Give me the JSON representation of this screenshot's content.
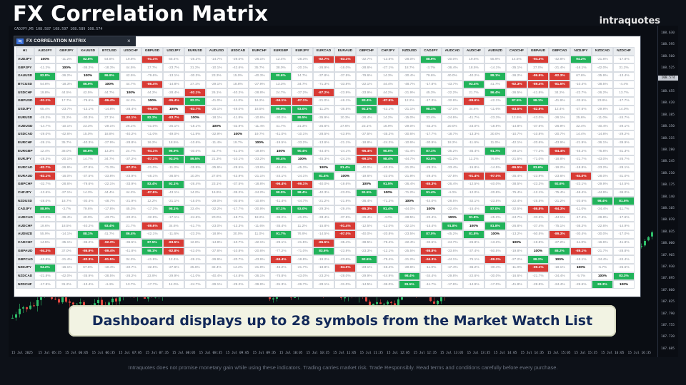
{
  "promo": {
    "title": "FX Correlation Matrix",
    "brand": "intraquotes",
    "caption": "Dashboard displays up to 28 symbols from the Market Watch List",
    "disclaimer": "Intraquotes does not promise monetary gain while using these indicators. Trading carries market risk. Trade Responsibly. Read terms and conditions carefully before every purchase."
  },
  "chart": {
    "symbol_info": "CADJPY,M5  108.587 108.597 108.589 108.574",
    "current_price": "108.574",
    "price_ticks": [
      "108.630",
      "108.595",
      "108.560",
      "108.525",
      "108.490",
      "108.455",
      "108.420",
      "108.385",
      "108.350",
      "108.315",
      "108.280",
      "108.245",
      "108.210",
      "108.175",
      "108.140",
      "108.105",
      "108.070",
      "108.035",
      "108.000",
      "107.965",
      "107.930",
      "107.895",
      "107.860",
      "107.825",
      "107.790",
      "107.755",
      "107.720",
      "107.685"
    ],
    "time_ticks": [
      "15 Jul 2025",
      "15 Jul 05:35",
      "15 Jul 06:05",
      "15 Jul 06:35",
      "15 Jul 07:05",
      "15 Jul 07:35",
      "15 Jul 08:05",
      "15 Jul 08:35",
      "15 Jul 09:05",
      "15 Jul 09:35",
      "15 Jul 10:05",
      "15 Jul 10:35",
      "15 Jul 11:05",
      "15 Jul 11:35",
      "15 Jul 12:05",
      "15 Jul 12:35",
      "15 Jul 13:05",
      "15 Jul 13:35",
      "15 Jul 14:05",
      "15 Jul 14:35",
      "15 Jul 15:05",
      "15 Jul 15:35",
      "15 Jul 16:05",
      "15 Jul 16:35"
    ]
  },
  "panel": {
    "logo": "iq",
    "title": "FX CORRELATION MATRIX",
    "close": "×",
    "corner": "H1",
    "symbols": [
      "AUDJPY",
      "GBPJPY",
      "XAUUSD",
      "BTCUSD",
      "USDCHF",
      "GBPUSD",
      "USDJPY",
      "EURUSD",
      "AUDUSD",
      "USDCAD",
      "EURCHF",
      "EURGBP",
      "EURJPY",
      "EURCAD",
      "EURAUD",
      "GBPCHF",
      "CHFJPY",
      "NZDUSD",
      "CADJPY",
      "AUDCAD",
      "AUDCHF",
      "AUDNZD",
      "CADCHF",
      "GBPAUD",
      "GBPCAD",
      "NZDJPY",
      "NZDCAD",
      "NZDCHF"
    ],
    "matrix": [
      [
        "100%",
        "-11.2%",
        "82.8%",
        "54.8%",
        "19.8%",
        "-91.1%",
        "65.4%",
        "-26.2%",
        "-14.7%",
        "-29.0%",
        "-26.1%",
        "12.4%",
        "-28.3%",
        "-82.7%",
        "-83.1%",
        "-32.7%",
        "-13.6%",
        "-28.0%",
        "88.9%",
        "-20.0%",
        "19.6%",
        "55.9%",
        "14.5%",
        "-94.3%",
        "-42.8%",
        "94.2%",
        "-21.8%",
        "-17.8%"
      ],
      [
        "-11.2%",
        "100%",
        "-36.2%",
        "-18.3%",
        "44.5%",
        "17.7%",
        "-23.7%",
        "31.2%",
        "-10.1%",
        "-42.6%",
        "35.7%",
        "38.0%",
        "-20.1%",
        "-26.9%",
        "-16.0%",
        "-28.6%",
        "-27.1%",
        "18.7%",
        "-3.7%",
        "-36.4%",
        "18.5%",
        "-14.1%",
        "-35.1%",
        "37.0%",
        "-21.4%",
        "-16.1%",
        "-42.0%",
        "31.2%"
      ],
      [
        "82.8%",
        "-36.2%",
        "100%",
        "86.9%",
        "42.5%",
        "-79.6%",
        "-13.1%",
        "-30.3%",
        "23.3%",
        "15.0%",
        "-40.3%",
        "80.6%",
        "14.7%",
        "-37.8%",
        "-37.5%",
        "-79.6%",
        "14.3%",
        "-30.4%",
        "79.6%",
        "40.0%",
        "-40.2%",
        "88.1%",
        "-36.2%",
        "-86.9%",
        "-82.3%",
        "67.6%",
        "-35.9%",
        "-13.4%"
      ],
      [
        "54.8%",
        "-18.3%",
        "86.9%",
        "100%",
        "44.7%",
        "-86.4%",
        "-14.8%",
        "27.1%",
        "-29.1%",
        "18.8%",
        "-27.9%",
        "13.3%",
        "34.7%",
        "-71.3%",
        "-33.8%",
        "-22.1%",
        "44.4%",
        "-48.7%",
        "-17.8%",
        "-43.7%",
        "93.4%",
        "41.7%",
        "-92.3%",
        "-89.4%",
        "-81.5%",
        "-10.4%",
        "-38.5%",
        "-4.4%"
      ],
      [
        "19.8%",
        "44.5%",
        "42.5%",
        "44.7%",
        "100%",
        "44.2%",
        "-28.4%",
        "-92.1%",
        "26.1%",
        "-40.2%",
        "-28.8%",
        "24.7%",
        "-37.2%",
        "-87.2%",
        "-23.9%",
        "-33.9%",
        "44.2%",
        "-21.9%",
        "45.3%",
        "-22.2%",
        "21.7%",
        "86.4%",
        "-36.5%",
        "-41.8%",
        "34.2%",
        "-22.7%",
        "-26.2%",
        "13.7%"
      ],
      [
        "-91.1%",
        "17.7%",
        "-79.6%",
        "-86.4%",
        "44.2%",
        "100%",
        "-95.4%",
        "82.2%",
        "-41.0%",
        "-11.0%",
        "16.2%",
        "-94.1%",
        "-87.1%",
        "-21.0%",
        "-46.1%",
        "83.4%",
        "-87.5%",
        "12.2%",
        "-17.3%",
        "-32.9%",
        "-89.6%",
        "-42.1%",
        "87.5%",
        "98.1%",
        "-41.9%",
        "-32.5%",
        "23.9%",
        "-17.7%"
      ],
      [
        "65.4%",
        "-23.7%",
        "-13.1%",
        "-14.8%",
        "-28.4%",
        "-95.4%",
        "100%",
        "-83.7%",
        "-25.1%",
        "-49.0%",
        "18.5%",
        "96.9%",
        "93.0%",
        "-11.2%",
        "-36.5%",
        "92.1%",
        "-43.1%",
        "-21.1%",
        "98.1%",
        "-17.1%",
        "34.6%",
        "-11.6%",
        "-83.5%",
        "-82.8%",
        "12.4%",
        "-27.6%",
        "-29.9%",
        "14.0%"
      ],
      [
        "-26.2%",
        "31.2%",
        "-30.3%",
        "27.1%",
        "-92.1%",
        "82.2%",
        "-83.7%",
        "100%",
        "-18.1%",
        "-11.8%",
        "-10.6%",
        "-30.0%",
        "89.5%",
        "-35.9%",
        "10.3%",
        "-26.4%",
        "14.2%",
        "-15.0%",
        "33.4%",
        "-24.6%",
        "-41.7%",
        "-23.3%",
        "12.6%",
        "-43.0%",
        "-26.1%",
        "25.6%",
        "-11.0%",
        "-24.7%"
      ],
      [
        "-14.7%",
        "-10.1%",
        "23.3%",
        "-29.1%",
        "26.1%",
        "-41.0%",
        "-25.1%",
        "-18.1%",
        "100%",
        "-32.9%",
        "-11.4%",
        "41.7%",
        "21.3%",
        "-25.6%",
        "27.6%",
        "23.1%",
        "16.9%",
        "-29.0%",
        "-32.2%",
        "20.0%",
        "-23.0%",
        "-18.9%",
        "-14.8%",
        "-37.6%",
        "-26.9%",
        "32.4%",
        "-40.4%",
        "-29.1%"
      ],
      [
        "-29.0%",
        "-42.6%",
        "15.0%",
        "18.8%",
        "-40.2%",
        "-11.0%",
        "-49.0%",
        "-11.8%",
        "-32.9%",
        "100%",
        "19.7%",
        "-41.0%",
        "-10.1%",
        "-28.5%",
        "-43.9%",
        "-37.5%",
        "-35.2%",
        "-30.6%",
        "-17.7%",
        "-18.7%",
        "-13.3%",
        "30.0%",
        "-10.7%",
        "-10.8%",
        "-20.7%",
        "14.4%",
        "-14.8%",
        "-29.2%"
      ],
      [
        "-26.1%",
        "35.7%",
        "-40.3%",
        "-27.9%",
        "-28.8%",
        "16.2%",
        "18.5%",
        "-10.6%",
        "-11.4%",
        "19.7%",
        "100%",
        "-19.5%",
        "-33.2%",
        "-13.6%",
        "-21.1%",
        "-18.8%",
        "-24.2%",
        "-10.6%",
        "-30.9%",
        "18.2%",
        "-11.6%",
        "11.0%",
        "-42.1%",
        "-20.6%",
        "-43.9%",
        "-21.9%",
        "-36.1%",
        "-39.9%"
      ],
      [
        "12.4%",
        "38.0%",
        "80.6%",
        "13.3%",
        "24.7%",
        "-94.1%",
        "96.9%",
        "-30.0%",
        "41.7%",
        "-41.0%",
        "-19.5%",
        "100%",
        "90.4%",
        "-44.4%",
        "-24.1%",
        "-96.4%",
        "90.0%",
        "-41.4%",
        "87.1%",
        "-35.2%",
        "-35.4%",
        "91.7%",
        "-29.1%",
        "-77.2%",
        "-84.4%",
        "-46.2%",
        "-75.8%",
        "-31.3%"
      ],
      [
        "-28.3%",
        "-20.1%",
        "14.7%",
        "34.7%",
        "-37.2%",
        "-87.1%",
        "93.0%",
        "89.5%",
        "21.3%",
        "-10.1%",
        "-33.2%",
        "90.4%",
        "100%",
        "-45.3%",
        "-24.1%",
        "-99.1%",
        "98.4%",
        "-44.7%",
        "93.0%",
        "-41.2%",
        "11.2%",
        "76.9%",
        "-21.5%",
        "-71.0%",
        "-18.8%",
        "-21.7%",
        "-43.0%",
        "-26.7%"
      ],
      [
        "-82.7%",
        "-26.9%",
        "-37.8%",
        "-71.3%",
        "-87.2%",
        "-21.0%",
        "-11.2%",
        "-35.9%",
        "-25.6%",
        "-28.5%",
        "-13.6%",
        "-44.4%",
        "-45.3%",
        "100%",
        "81.4%",
        "-40.0%",
        "-40.3%",
        "-21.2%",
        "-29.3%",
        "-33.4%",
        "-15.8%",
        "-14.5%",
        "-86.5%",
        "83.6%",
        "-19.2%",
        "-18.8%",
        "-23.2%",
        "-28.1%"
      ],
      [
        "-83.1%",
        "-16.0%",
        "-37.5%",
        "-33.8%",
        "-23.9%",
        "-46.1%",
        "-36.5%",
        "10.3%",
        "27.6%",
        "-43.9%",
        "-21.1%",
        "-24.1%",
        "-24.1%",
        "81.4%",
        "100%",
        "-19.6%",
        "-23.0%",
        "-21.9%",
        "-29.4%",
        "-37.5%",
        "-91.4%",
        "-97.0%",
        "-35.4%",
        "-23.9%",
        "-23.6%",
        "-84.0%",
        "-28.0%",
        "-31.0%"
      ],
      [
        "-32.7%",
        "-28.6%",
        "-79.6%",
        "-22.1%",
        "-33.9%",
        "83.4%",
        "92.1%",
        "-26.4%",
        "23.1%",
        "-37.5%",
        "-18.8%",
        "-96.4%",
        "-99.1%",
        "-40.0%",
        "-19.6%",
        "100%",
        "91.5%",
        "-36.4%",
        "-85.3%",
        "-26.4%",
        "-12.5%",
        "-40.0%",
        "-38.5%",
        "-23.3%",
        "92.6%",
        "-23.1%",
        "-29.9%",
        "-14.5%"
      ],
      [
        "-13.6%",
        "-27.1%",
        "14.3%",
        "44.4%",
        "44.2%",
        "-87.5%",
        "-43.1%",
        "14.2%",
        "16.9%",
        "-35.2%",
        "-24.2%",
        "90.0%",
        "98.4%",
        "-40.3%",
        "-23.0%",
        "91.5%",
        "100%",
        "-71.2%",
        "91.4%",
        "-4.0%",
        "-12.0%",
        "-20.8%",
        "-75.4%",
        "-12.1%",
        "-75.4%",
        "-46.4%",
        "-44.9%",
        "-36.0%"
      ],
      [
        "-28.0%",
        "18.7%",
        "-30.4%",
        "-48.7%",
        "-21.9%",
        "12.2%",
        "-21.1%",
        "-15.0%",
        "-29.0%",
        "-30.6%",
        "-10.6%",
        "-41.4%",
        "-44.7%",
        "-21.2%",
        "-21.9%",
        "-36.4%",
        "-71.2%",
        "100%",
        "-44.0%",
        "-28.5%",
        "-32.1%",
        "-23.5%",
        "-22.4%",
        "-25.5%",
        "-21.2%",
        "-20.6%",
        "98.4%",
        "81.5%"
      ],
      [
        "88.9%",
        "-3.7%",
        "79.6%",
        "-17.8%",
        "45.3%",
        "-17.3%",
        "98.1%",
        "33.4%",
        "-32.2%",
        "-17.7%",
        "-30.9%",
        "87.1%",
        "93.0%",
        "-29.3%",
        "-29.4%",
        "-85.3%",
        "91.4%",
        "-44.0%",
        "100%",
        "-22.4%",
        "-15.4%",
        "87.0%",
        "-32.5%",
        "-86.8%",
        "-94.3%",
        "-11.0%",
        "-34.4%",
        "-11.7%"
      ],
      [
        "-20.0%",
        "-36.4%",
        "40.0%",
        "-43.7%",
        "-22.2%",
        "-32.9%",
        "-17.1%",
        "-24.6%",
        "20.0%",
        "-18.7%",
        "18.2%",
        "-35.2%",
        "-41.2%",
        "-33.4%",
        "-37.5%",
        "-26.4%",
        "-4.0%",
        "-28.5%",
        "-22.4%",
        "100%",
        "91.8%",
        "-45.2%",
        "-24.7%",
        "-33.6%",
        "-44.1%",
        "-17.4%",
        "-29.8%",
        "-17.6%"
      ],
      [
        "19.6%",
        "18.5%",
        "-40.2%",
        "93.4%",
        "21.7%",
        "-89.6%",
        "34.6%",
        "-41.7%",
        "-23.0%",
        "-13.3%",
        "-11.6%",
        "-35.4%",
        "11.2%",
        "-15.8%",
        "-91.4%",
        "-12.5%",
        "-12.0%",
        "-32.1%",
        "-15.4%",
        "91.8%",
        "100%",
        "81.8%",
        "-26.8%",
        "-37.4%",
        "-75.1%",
        "-36.2%",
        "-22.6%",
        "-14.9%"
      ],
      [
        "55.9%",
        "-14.1%",
        "88.1%",
        "41.7%",
        "86.4%",
        "-42.1%",
        "-11.6%",
        "-23.3%",
        "-18.9%",
        "30.0%",
        "11.0%",
        "91.7%",
        "76.9%",
        "-14.5%",
        "-97.0%",
        "-40.0%",
        "-20.8%",
        "-23.5%",
        "87.0%",
        "-45.2%",
        "81.8%",
        "100%",
        "-13.2%",
        "-50.5%",
        "-89.3%",
        "-30.4%",
        "-30.0%",
        "-17.0%"
      ],
      [
        "14.5%",
        "-35.1%",
        "-36.2%",
        "-92.3%",
        "-36.5%",
        "87.5%",
        "-83.5%",
        "12.6%",
        "-14.8%",
        "-10.7%",
        "-42.1%",
        "-29.1%",
        "-21.5%",
        "-86.5%",
        "-35.4%",
        "-38.5%",
        "-75.4%",
        "-22.4%",
        "-32.5%",
        "-24.7%",
        "-26.8%",
        "-13.2%",
        "100%",
        "-19.8%",
        "-27.2%",
        "-11.0%",
        "-16.6%",
        "-41.8%"
      ],
      [
        "-94.3%",
        "37.0%",
        "-86.9%",
        "-89.4%",
        "-41.8%",
        "98.1%",
        "-82.8%",
        "-43.0%",
        "-37.6%",
        "-10.8%",
        "-20.6%",
        "-77.2%",
        "-71.0%",
        "83.6%",
        "-23.9%",
        "-23.3%",
        "-12.1%",
        "-25.5%",
        "-86.8%",
        "-33.6%",
        "-37.4%",
        "-50.5%",
        "-19.8%",
        "100%",
        "88.2%",
        "-89.1%",
        "-21.7%",
        "-28.8%"
      ],
      [
        "-42.8%",
        "-21.4%",
        "-82.3%",
        "-81.5%",
        "34.2%",
        "-41.9%",
        "12.4%",
        "-26.1%",
        "-26.9%",
        "-20.7%",
        "-43.9%",
        "-84.4%",
        "-18.8%",
        "-19.2%",
        "-23.6%",
        "92.6%",
        "-75.4%",
        "-21.2%",
        "-94.3%",
        "-44.1%",
        "-75.1%",
        "-89.3%",
        "-27.2%",
        "88.2%",
        "100%",
        "-18.1%",
        "-34.4%",
        "-24.4%"
      ],
      [
        "94.2%",
        "-16.1%",
        "67.6%",
        "-10.4%",
        "-22.7%",
        "-32.5%",
        "-27.6%",
        "25.6%",
        "32.4%",
        "14.4%",
        "-21.9%",
        "-46.2%",
        "-21.7%",
        "-18.8%",
        "-84.0%",
        "-23.1%",
        "-46.4%",
        "-20.6%",
        "-11.0%",
        "-17.4%",
        "-36.2%",
        "-30.4%",
        "-11.0%",
        "-89.1%",
        "-18.1%",
        "100%",
        "-5.7%",
        "-26.6%"
      ],
      [
        "-21.8%",
        "-42.0%",
        "-35.9%",
        "-38.5%",
        "-26.2%",
        "23.9%",
        "-29.9%",
        "-11.0%",
        "-40.4%",
        "-14.8%",
        "-36.1%",
        "-75.8%",
        "-43.0%",
        "-23.2%",
        "-28.0%",
        "-29.9%",
        "-44.9%",
        "98.4%",
        "-34.4%",
        "-29.8%",
        "-22.6%",
        "-30.0%",
        "-16.6%",
        "-21.7%",
        "-34.4%",
        "-5.7%",
        "100%",
        "83.3%"
      ],
      [
        "-17.8%",
        "31.2%",
        "-13.4%",
        "-4.4%",
        "13.7%",
        "-17.7%",
        "14.0%",
        "-24.7%",
        "-29.1%",
        "-29.2%",
        "-39.9%",
        "-31.3%",
        "-26.7%",
        "-28.1%",
        "-31.0%",
        "-14.5%",
        "-36.0%",
        "81.5%",
        "-11.7%",
        "-17.6%",
        "-14.9%",
        "-17.0%",
        "-41.8%",
        "-28.8%",
        "-24.4%",
        "-26.6%",
        "83.3%",
        "100%"
      ]
    ]
  },
  "colors": {
    "positive": "#21b35a",
    "negative": "#d83a34",
    "bull": "#2fbf6a",
    "bear": "#e0473f"
  }
}
